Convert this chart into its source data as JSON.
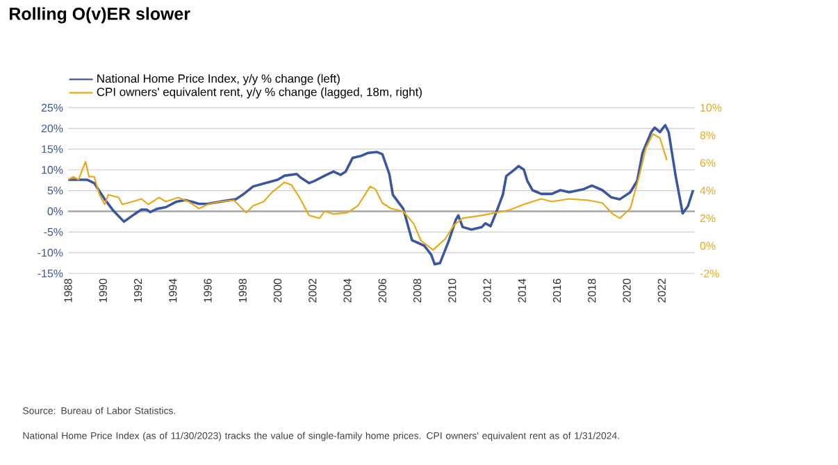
{
  "chart_data": {
    "type": "line",
    "title": "Rolling O(v)ER slower",
    "xlim": [
      1988,
      2023.9
    ],
    "xticks": [
      1988,
      1990,
      1992,
      1994,
      1996,
      1998,
      2000,
      2002,
      2004,
      2006,
      2008,
      2010,
      2012,
      2014,
      2016,
      2018,
      2020,
      2022
    ],
    "ylim": [
      -15,
      25
    ],
    "yticks": [
      {
        "value": -15,
        "label": "-15%"
      },
      {
        "value": -10,
        "label": "-10%"
      },
      {
        "value": -5,
        "label": "-5%"
      },
      {
        "value": 0,
        "label": "0%"
      },
      {
        "value": 5,
        "label": "5%"
      },
      {
        "value": 10,
        "label": "10%"
      },
      {
        "value": 15,
        "label": "15%"
      },
      {
        "value": 20,
        "label": "20%"
      },
      {
        "value": 25,
        "label": "25%"
      }
    ],
    "y2lim": [
      -2,
      10
    ],
    "y2ticks": [
      {
        "value": -2,
        "label": "-2%"
      },
      {
        "value": 0,
        "label": "0%"
      },
      {
        "value": 2,
        "label": "2%"
      },
      {
        "value": 4,
        "label": "4%"
      },
      {
        "value": 6,
        "label": "6%"
      },
      {
        "value": 8,
        "label": "8%"
      },
      {
        "value": 10,
        "label": "10%"
      }
    ],
    "grid": "y",
    "legend": "top left",
    "ref_lines": [
      {
        "axis": "y",
        "value": 0,
        "color": "#a6a6a6"
      }
    ],
    "series": [
      {
        "name": "National Home Price Index, y/y % change (left)",
        "color": "#3a56a0",
        "axis": "y",
        "x": [
          1988.0,
          1989.1,
          1989.5,
          1990.1,
          1990.6,
          1991.2,
          1991.8,
          1992.2,
          1992.5,
          1992.7,
          1993.1,
          1993.6,
          1994.2,
          1994.7,
          1995.1,
          1995.5,
          1996.0,
          1996.8,
          1997.6,
          1998.0,
          1998.6,
          1999.2,
          2000.0,
          2000.4,
          2001.1,
          2001.3,
          2001.8,
          2002.1,
          2002.7,
          2003.2,
          2003.6,
          2003.9,
          2004.3,
          2004.8,
          2005.2,
          2005.7,
          2006.0,
          2006.4,
          2006.6,
          2007.2,
          2007.7,
          2008.4,
          2008.8,
          2009.0,
          2009.3,
          2009.8,
          2010.2,
          2010.35,
          2010.6,
          2011.1,
          2011.7,
          2011.9,
          2012.2,
          2012.5,
          2012.9,
          2013.1,
          2013.5,
          2013.8,
          2014.1,
          2014.3,
          2014.6,
          2015.1,
          2015.7,
          2016.2,
          2016.7,
          2017.5,
          2018.0,
          2018.6,
          2019.1,
          2019.6,
          2020.2,
          2020.6,
          2020.9,
          2021.4,
          2021.6,
          2021.9,
          2022.2,
          2022.4,
          2022.8,
          2023.2,
          2023.5,
          2023.8
        ],
        "values": [
          7.6,
          7.6,
          6.8,
          2.9,
          0.1,
          -2.5,
          -0.7,
          0.4,
          0.4,
          -0.2,
          0.6,
          1.0,
          2.3,
          2.7,
          2.3,
          1.8,
          1.8,
          2.4,
          2.9,
          4.0,
          6.0,
          6.7,
          7.6,
          8.6,
          9.0,
          8.2,
          6.8,
          7.3,
          8.6,
          9.6,
          8.8,
          9.6,
          12.9,
          13.4,
          14.1,
          14.3,
          13.8,
          9.0,
          4.0,
          0.6,
          -7.0,
          -8.3,
          -10.5,
          -12.8,
          -12.5,
          -7.2,
          -2.1,
          -1.0,
          -3.8,
          -4.4,
          -3.8,
          -2.9,
          -3.6,
          -0.5,
          4.0,
          8.5,
          9.8,
          10.9,
          10.1,
          7.4,
          5.1,
          4.2,
          4.2,
          5.1,
          4.6,
          5.3,
          6.2,
          5.1,
          3.4,
          2.9,
          4.6,
          7.4,
          14.1,
          19.1,
          20.2,
          19.1,
          20.8,
          19.1,
          8.5,
          -0.5,
          1.2,
          5.1
        ]
      },
      {
        "name": "CPI owners' equivalent rent, y/y % change (lagged, 18m, right)",
        "color": "#e8a818",
        "axis": "y2",
        "x": [
          1988.0,
          1988.3,
          1988.6,
          1989.0,
          1989.2,
          1989.5,
          1989.8,
          1990.1,
          1990.3,
          1990.9,
          1991.1,
          1991.7,
          1992.2,
          1992.6,
          1993.2,
          1993.6,
          1994.3,
          1994.9,
          1995.5,
          1996.0,
          1996.7,
          1997.5,
          1998.2,
          1998.6,
          1999.2,
          1999.7,
          2000.4,
          2000.8,
          2001.3,
          2001.8,
          2002.4,
          2002.7,
          2003.2,
          2004.0,
          2004.6,
          2005.3,
          2005.6,
          2006.0,
          2006.5,
          2007.2,
          2007.8,
          2008.2,
          2008.9,
          2009.6,
          2010.1,
          2010.6,
          2011.7,
          2012.5,
          2013.3,
          2014.1,
          2015.1,
          2015.7,
          2016.7,
          2017.8,
          2018.6,
          2019.2,
          2019.6,
          2020.2,
          2020.7,
          2021.1,
          2021.5,
          2021.9,
          2022.3
        ],
        "values": [
          4.8,
          5.0,
          4.8,
          6.1,
          5.0,
          5.0,
          3.7,
          3.0,
          3.7,
          3.5,
          3.0,
          3.2,
          3.4,
          3.0,
          3.5,
          3.2,
          3.5,
          3.2,
          2.7,
          3.0,
          3.2,
          3.3,
          2.4,
          2.9,
          3.2,
          3.9,
          4.6,
          4.4,
          3.4,
          2.2,
          2.0,
          2.5,
          2.3,
          2.4,
          2.9,
          4.3,
          4.1,
          3.1,
          2.7,
          2.5,
          1.6,
          0.4,
          -0.3,
          0.5,
          1.5,
          2.0,
          2.2,
          2.4,
          2.6,
          3.0,
          3.4,
          3.2,
          3.4,
          3.3,
          3.1,
          2.3,
          2.0,
          2.7,
          5.0,
          7.1,
          8.1,
          7.8,
          6.2
        ]
      }
    ],
    "annotations": [
      "Source: Bureau of Labor Statistics.",
      "National Home Price Index (as of 11/30/2023) tracks the value of single-family home prices. CPI owners' equivalent rent as of 1/31/2024."
    ]
  }
}
